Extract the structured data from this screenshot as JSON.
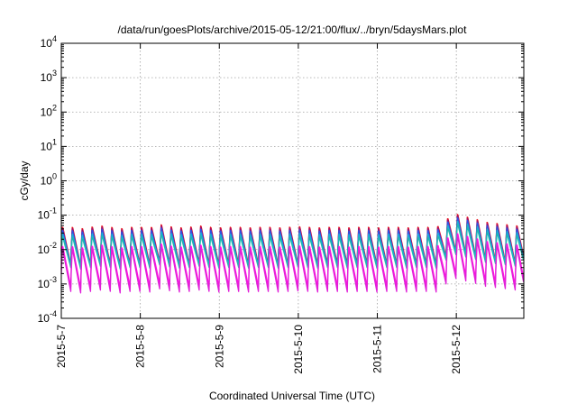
{
  "chart_data": {
    "type": "line",
    "title": "/data/run/goesPlots/archive/2015-05-12/21:00/flux/../bryn/5daysMars.plot",
    "xlabel": "Coordinated Universal Time (UTC)",
    "ylabel": "cGy/day",
    "yscale": "log",
    "ylim": [
      0.0001,
      10000
    ],
    "xlim": [
      "2015-05-07",
      "2015-05-12 20:30"
    ],
    "grid": true,
    "x_ticks": [
      "2015-5-7",
      "2015-5-8",
      "2015-5-9",
      "2015-5-10",
      "2015-5-11",
      "2015-5-12"
    ],
    "y_ticks": [
      {
        "base": "10",
        "exp": "4",
        "value": 10000
      },
      {
        "base": "10",
        "exp": "3",
        "value": 1000
      },
      {
        "base": "10",
        "exp": "2",
        "value": 100
      },
      {
        "base": "10",
        "exp": "1",
        "value": 10
      },
      {
        "base": "10",
        "exp": "0",
        "value": 1
      },
      {
        "base": "10",
        "exp": "-1",
        "value": 0.1
      },
      {
        "base": "10",
        "exp": "-2",
        "value": 0.01
      },
      {
        "base": "10",
        "exp": "-3",
        "value": 0.001
      },
      {
        "base": "10",
        "exp": "-4",
        "value": 0.0001
      }
    ],
    "oscillation": {
      "period_hours": 3,
      "profile_peak": [
        0.05,
        0.05,
        0.045,
        0.05,
        0.055,
        0.05,
        0.045,
        0.05,
        0.05,
        0.048,
        0.06,
        0.052,
        0.048,
        0.05,
        0.055,
        0.05,
        0.048,
        0.05,
        0.05,
        0.048,
        0.05,
        0.05,
        0.048,
        0.05,
        0.052,
        0.05,
        0.048,
        0.05,
        0.05,
        0.048,
        0.05,
        0.05,
        0.048,
        0.05,
        0.05,
        0.048,
        0.05,
        0.05,
        0.048,
        0.12,
        0.1,
        0.085,
        0.07,
        0.065,
        0.06,
        0.055
      ],
      "profile_days": [
        0,
        0.125,
        0.25,
        0.375,
        0.5,
        0.625,
        0.75,
        0.875,
        1,
        1.125,
        1.25,
        1.375,
        1.5,
        1.625,
        1.75,
        1.875,
        2,
        2.125,
        2.25,
        2.375,
        2.5,
        2.625,
        2.75,
        2.875,
        3,
        3.125,
        3.25,
        3.375,
        3.5,
        3.625,
        3.75,
        3.875,
        4,
        4.125,
        4.25,
        4.375,
        4.5,
        4.625,
        4.75,
        5.0,
        5.125,
        5.25,
        5.375,
        5.5,
        5.625,
        5.75
      ]
    },
    "series": [
      {
        "color": "#e8101c",
        "peak_factor": 1.0,
        "trough_factor": 0.075
      },
      {
        "color": "#a0106a",
        "peak_factor": 0.92,
        "trough_factor": 0.07
      },
      {
        "color": "#3050e0",
        "peak_factor": 0.8,
        "trough_factor": 0.085
      },
      {
        "color": "#1aaad6",
        "peak_factor": 0.62,
        "trough_factor": 0.11
      },
      {
        "color": "#20b8b0",
        "peak_factor": 0.5,
        "trough_factor": 0.12
      },
      {
        "color": "#ff10e0",
        "peak_factor": 0.28,
        "trough_factor": 0.06
      },
      {
        "color": "#e020d8",
        "peak_factor": 0.22,
        "trough_factor": 0.055
      }
    ]
  }
}
